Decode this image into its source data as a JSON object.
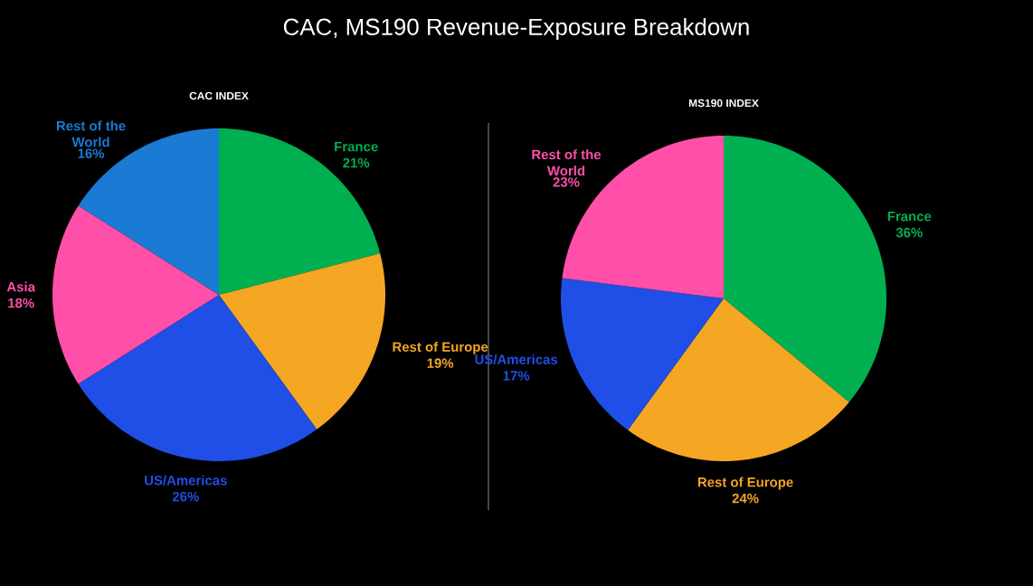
{
  "chart_data": [
    {
      "type": "pie",
      "title": "CAC, MS190 Revenue-Exposure Breakdown",
      "subtitle": "CAC INDEX",
      "categories": [
        "France",
        "Rest of Europe",
        "US/Americas",
        "Asia",
        "Rest of the World"
      ],
      "values": [
        21,
        19,
        26,
        18,
        16
      ],
      "value_labels": [
        "21%",
        "19%",
        "26%",
        "18%",
        "16%"
      ],
      "colors": [
        "#00b050",
        "#f5a623",
        "#1f4fe6",
        "#ff4fa8",
        "#1a7ad4"
      ]
    },
    {
      "type": "pie",
      "title": "MS190 INDEX",
      "categories": [
        "France",
        "Rest of Europe",
        "US/Americas",
        "Rest of the World"
      ],
      "values": [
        36,
        24,
        17,
        23
      ],
      "value_labels": [
        "36%",
        "24%",
        "17%",
        "23%"
      ],
      "colors": [
        "#00b050",
        "#f5a623",
        "#1f4fe6",
        "#ff4fa8"
      ]
    }
  ]
}
